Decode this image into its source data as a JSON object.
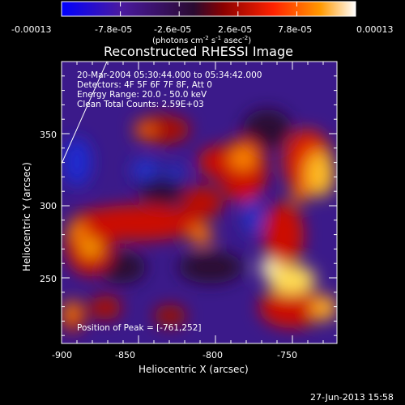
{
  "colorbar": {
    "ticks": [
      "-0.00013",
      "-7.8e-05",
      "-2.6e-05",
      "2.6e-05",
      "7.8e-05",
      "0.00013"
    ],
    "units_prefix": "(photons cm",
    "units_exp1": "-2",
    "units_mid": " s",
    "units_exp2": "-1",
    "units_mid2": " asec",
    "units_exp3": "-2",
    "units_suffix": ")",
    "colors": [
      "#0000ff",
      "#4a1aa0",
      "#2a0a30",
      "#8a0000",
      "#ff2200",
      "#ff9900",
      "#ffffff"
    ]
  },
  "plot": {
    "title": "Reconstructed RHESSI Image",
    "xlabel": "Heliocentric X (arcsec)",
    "ylabel": "Heliocentric Y (arcsec)",
    "x_ticks": [
      "-900",
      "-850",
      "-800",
      "-750"
    ],
    "y_ticks": [
      "350",
      "300",
      "250"
    ],
    "annotations": [
      "20-Mar-2004 05:30:44.000 to 05:34:42.000",
      "Detectors: 4F 5F 6F 7F 8F, Att 0",
      "Energy Range: 20.0 - 50.0 keV",
      "Clean    Total Counts: 2.59E+03"
    ],
    "peak_text": "Position of Peak = [-761,252]"
  },
  "timestamp": "27-Jun-2013 15:58"
}
